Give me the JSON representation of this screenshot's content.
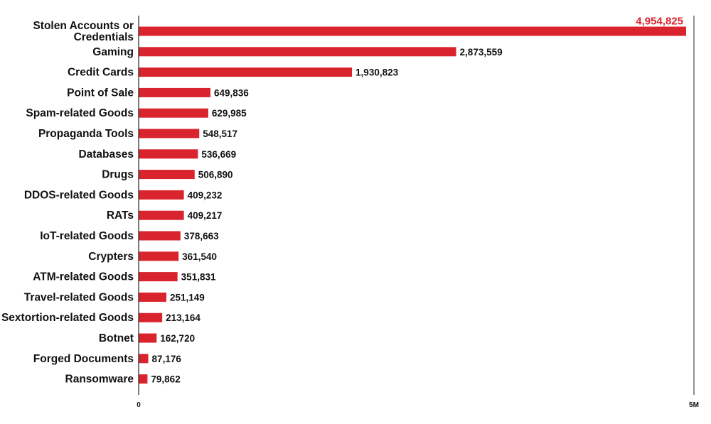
{
  "chart_data": {
    "type": "bar",
    "orientation": "horizontal",
    "categories": [
      [
        "Stolen Accounts or",
        "Credentials"
      ],
      [
        "Gaming"
      ],
      [
        "Credit Cards"
      ],
      [
        "Point of Sale"
      ],
      [
        "Spam-related Goods"
      ],
      [
        "Propaganda Tools"
      ],
      [
        "Databases"
      ],
      [
        "Drugs"
      ],
      [
        "DDOS-related Goods"
      ],
      [
        "RATs"
      ],
      [
        "IoT-related Goods"
      ],
      [
        "Crypters"
      ],
      [
        "ATM-related Goods"
      ],
      [
        "Travel-related Goods"
      ],
      [
        "Sextortion-related Goods"
      ],
      [
        "Botnet"
      ],
      [
        "Forged Documents"
      ],
      [
        "Ransomware"
      ]
    ],
    "values": [
      4954825,
      2873559,
      1930823,
      649836,
      629985,
      548517,
      536669,
      506890,
      409232,
      409217,
      378663,
      361540,
      351831,
      251149,
      213164,
      162720,
      87176,
      79862
    ],
    "value_labels": [
      "4,954,825",
      "2,873,559",
      "1,930,823",
      "649,836",
      "629,985",
      "548,517",
      "536,669",
      "506,890",
      "409,232",
      "409,217",
      "378,663",
      "361,540",
      "351,831",
      "251,149",
      "213,164",
      "162,720",
      "87,176",
      "79,862"
    ],
    "xlim": [
      0,
      5000000
    ],
    "x_ticks": [
      {
        "value": 0,
        "label": "0"
      },
      {
        "value": 5000000,
        "label": "5M"
      }
    ],
    "bar_color": "#d9232d",
    "highlight_label_color": "#d9232d",
    "grid": false,
    "legend": "none"
  }
}
